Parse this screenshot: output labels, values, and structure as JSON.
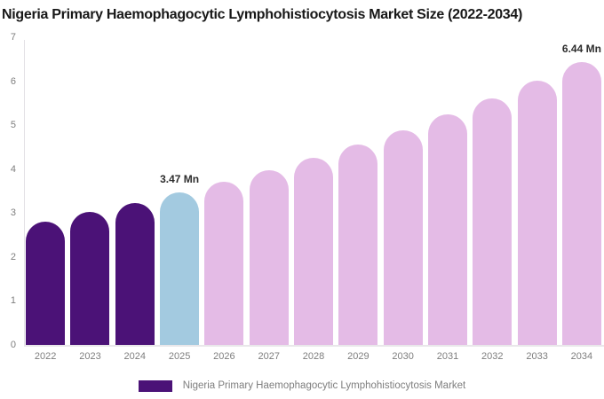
{
  "title": "Nigeria Primary Haemophagocytic Lymphohistiocytosis Market Size (2022-2034)",
  "legend": {
    "label": "Nigeria Primary Haemophagocytic Lymphohistiocytosis Market",
    "swatch_color": "#4B1277"
  },
  "colors": {
    "historical_bar": "#4B1277",
    "base_year_bar": "#A3CAE0",
    "forecast_bar": "#E4BBE6",
    "axis_text": "#7e7e7e",
    "axis_line": "#e3e1e5",
    "title_text": "#181818",
    "data_label_text": "#2d2d2d",
    "background": "#ffffff"
  },
  "chart_data": {
    "type": "bar",
    "title": "Nigeria Primary Haemophagocytic Lymphohistiocytosis Market Size (2022-2034)",
    "unit": "Mn",
    "categories": [
      "2022",
      "2023",
      "2024",
      "2025",
      "2026",
      "2027",
      "2028",
      "2029",
      "2030",
      "2031",
      "2032",
      "2033",
      "2034"
    ],
    "values": [
      2.81,
      3.02,
      3.23,
      3.47,
      3.72,
      3.98,
      4.26,
      4.56,
      4.89,
      5.24,
      5.61,
      6.01,
      6.44
    ],
    "bar_colors": [
      "#4B1277",
      "#4B1277",
      "#4B1277",
      "#A3CAE0",
      "#E4BBE6",
      "#E4BBE6",
      "#E4BBE6",
      "#E4BBE6",
      "#E4BBE6",
      "#E4BBE6",
      "#E4BBE6",
      "#E4BBE6",
      "#E4BBE6"
    ],
    "data_labels": [
      {
        "index": 3,
        "text": "3.47 Mn"
      },
      {
        "index": 12,
        "text": "6.44 Mn"
      }
    ],
    "xlabel": "",
    "ylabel": "",
    "ylim": [
      0,
      7
    ],
    "yticks": [
      0,
      1,
      2,
      3,
      4,
      5,
      6,
      7
    ],
    "grid": false,
    "legend_position": "bottom",
    "legend_entries": [
      "Nigeria Primary Haemophagocytic Lymphohistiocytosis Market"
    ]
  }
}
